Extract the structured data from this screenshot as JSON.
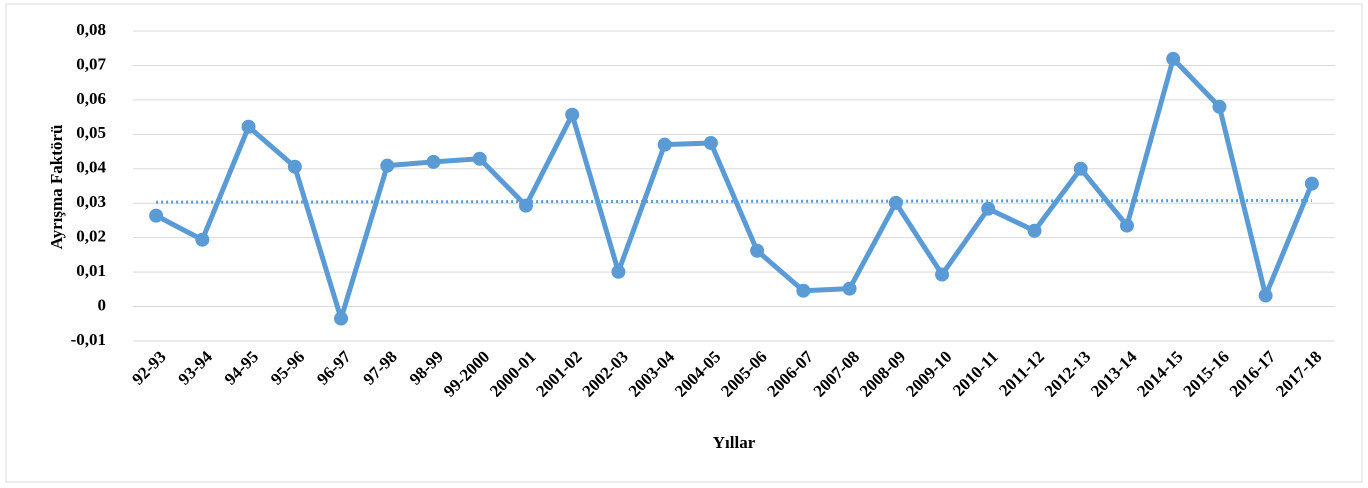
{
  "chart_data": {
    "type": "line",
    "x_label": "Yıllar",
    "y_label": "Ayrışma Faktörü",
    "categories": [
      "92-93",
      "93-94",
      "94-95",
      "95-96",
      "96-97",
      "97-98",
      "98-99",
      "99-2000",
      "2000-01",
      "2001-02",
      "2002-03",
      "2003-04",
      "2004-05",
      "2005-06",
      "2006-07",
      "2007-08",
      "2008-09",
      "2009-10",
      "2010-11",
      "2011-12",
      "2012-13",
      "2013-14",
      "2014-15",
      "2015-16",
      "2016-17",
      "2017-18"
    ],
    "values": [
      0.0264,
      0.0194,
      0.0522,
      0.0406,
      -0.0035,
      0.0409,
      0.042,
      0.0429,
      0.0293,
      0.0557,
      0.0101,
      0.047,
      0.0475,
      0.0162,
      0.0046,
      0.0052,
      0.0301,
      0.0093,
      0.0284,
      0.022,
      0.04,
      0.0235,
      0.0719,
      0.058,
      0.0032,
      0.0357
    ],
    "color": "#5b9bd5",
    "trendline": {
      "start": 0.0303,
      "end": 0.0308,
      "style": "dotted"
    },
    "ylim": [
      -0.01,
      0.08
    ],
    "yticks": [
      {
        "value": -0.01,
        "label": "-0,01"
      },
      0,
      {
        "value": 0.01,
        "label": "0,01"
      },
      {
        "value": 0.02,
        "label": "0,02"
      },
      {
        "value": 0.03,
        "label": "0,03"
      },
      {
        "value": 0.04,
        "label": "0,04"
      },
      {
        "value": 0.05,
        "label": "0,05"
      },
      {
        "value": 0.06,
        "label": "0,06"
      },
      {
        "value": 0.07,
        "label": "0,07"
      },
      {
        "value": 0.08,
        "label": "0,08"
      }
    ],
    "grid": true
  }
}
